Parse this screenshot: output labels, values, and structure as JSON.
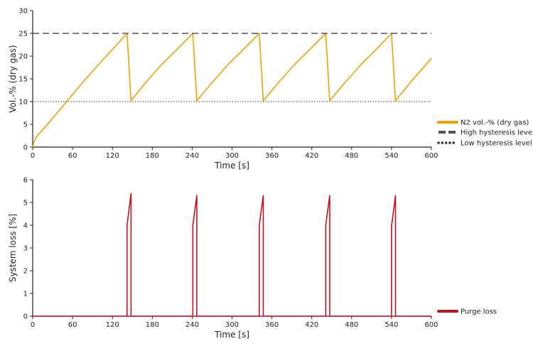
{
  "colors": {
    "n2": "#F0A000",
    "high": "#4A5560",
    "low": "#333333",
    "purge": "#C8101E",
    "axis": "#222222"
  },
  "chart_data": [
    {
      "type": "line",
      "xlabel": "Time [s]",
      "ylabel": "Vol.-% (dry gas)",
      "xlim": [
        0,
        600
      ],
      "ylim": [
        0,
        30
      ],
      "xticks": [
        0,
        60,
        120,
        180,
        240,
        300,
        360,
        420,
        480,
        540,
        600
      ],
      "yticks": [
        0,
        5,
        10,
        15,
        20,
        25,
        30
      ],
      "grid": false,
      "legend_placement": "right",
      "series": [
        {
          "name": "N2 vol.-% (dry gas)",
          "style": "solid",
          "x": [
            0,
            2,
            5,
            8,
            20,
            35,
            51,
            75,
            100,
            122,
            142,
            148,
            170,
            195,
            220,
            241,
            247,
            270,
            295,
            320,
            341,
            347,
            370,
            395,
            420,
            441,
            447,
            470,
            495,
            520,
            540,
            546,
            570,
            600
          ],
          "y": [
            0,
            1.2,
            2.1,
            2.7,
            4.6,
            7.2,
            10,
            14.2,
            18.3,
            21.8,
            25,
            10.2,
            14.2,
            18.3,
            21.9,
            25,
            10.2,
            14.2,
            18.3,
            21.9,
            25,
            10.2,
            14.2,
            18.3,
            21.9,
            25,
            10.2,
            14.2,
            18.3,
            21.9,
            25,
            10.2,
            14.5,
            19.5
          ]
        },
        {
          "name": "High hysteresis level",
          "style": "dashed",
          "x": [
            0,
            600
          ],
          "y": [
            25,
            25
          ]
        },
        {
          "name": "Low hysteresis level",
          "style": "dotted",
          "x": [
            0,
            600
          ],
          "y": [
            10,
            10
          ]
        }
      ]
    },
    {
      "type": "line",
      "xlabel": "Time [s]",
      "ylabel": "System loss [%]",
      "xlim": [
        0,
        600
      ],
      "ylim": [
        0,
        6
      ],
      "xticks": [
        0,
        60,
        120,
        180,
        240,
        300,
        360,
        420,
        480,
        540,
        600
      ],
      "yticks": [
        0,
        1,
        2,
        3,
        4,
        5,
        6
      ],
      "grid": false,
      "legend_placement": "right",
      "series": [
        {
          "name": "Purge loss",
          "style": "solid",
          "x": [
            0,
            142,
            142,
            148,
            148,
            241,
            241,
            247,
            247,
            341,
            341,
            347,
            347,
            441,
            441,
            447,
            447,
            540,
            540,
            546,
            546,
            600
          ],
          "y": [
            0,
            0,
            4.0,
            5.4,
            0,
            0,
            4.0,
            5.3,
            0,
            0,
            4.0,
            5.3,
            0,
            0,
            4.0,
            5.3,
            0,
            0,
            3.95,
            5.3,
            0,
            0
          ]
        }
      ]
    }
  ]
}
